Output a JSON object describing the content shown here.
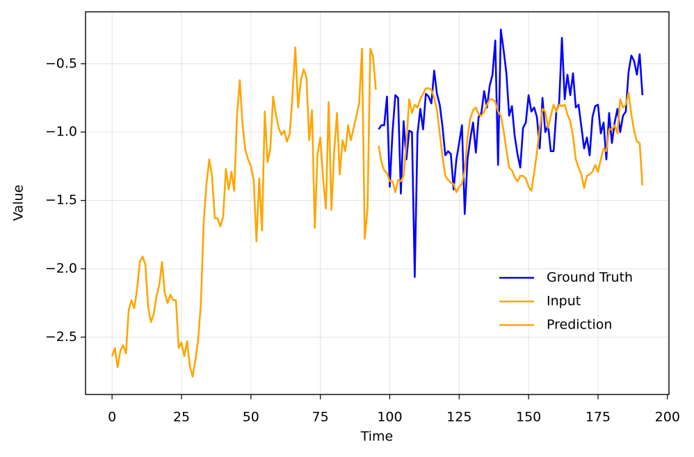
{
  "chart_data": {
    "type": "line",
    "xlabel": "Time",
    "ylabel": "Value",
    "xlim": [
      -9.55,
      200.55
    ],
    "ylim": [
      -2.92,
      -0.12
    ],
    "xticks": [
      0,
      25,
      50,
      75,
      100,
      125,
      150,
      175,
      200
    ],
    "yticks": [
      {
        "value": -2.5,
        "label": "−2.5"
      },
      {
        "value": -2.0,
        "label": "−2.0"
      },
      {
        "value": -1.5,
        "label": "−1.5"
      },
      {
        "value": -1.0,
        "label": "−1.0"
      },
      {
        "value": -0.5,
        "label": "−0.5"
      }
    ],
    "grid": true,
    "legend": "lower right",
    "series": [
      {
        "name": "Ground Truth",
        "color": "#0000ff",
        "x": [
          96,
          97,
          98,
          99,
          100,
          101,
          102,
          103,
          104,
          105,
          106,
          107,
          108,
          109,
          110,
          111,
          112,
          113,
          114,
          115,
          116,
          117,
          118,
          119,
          120,
          121,
          122,
          123,
          124,
          125,
          126,
          127,
          128,
          129,
          130,
          131,
          132,
          133,
          134,
          135,
          136,
          137,
          138,
          139,
          140,
          141,
          142,
          143,
          144,
          145,
          146,
          147,
          148,
          149,
          150,
          151,
          152,
          153,
          154,
          155,
          156,
          157,
          158,
          159,
          160,
          161,
          162,
          163,
          164,
          165,
          166,
          167,
          168,
          169,
          170,
          171,
          172,
          173,
          174,
          175,
          176,
          177,
          178,
          179,
          180,
          181,
          182,
          183,
          184,
          185,
          186,
          187,
          188,
          189,
          190,
          191
        ],
        "values": [
          -0.98,
          -0.95,
          -0.95,
          -0.74,
          -1.4,
          -1.0,
          -0.73,
          -0.75,
          -1.45,
          -0.92,
          -1.2,
          -0.99,
          -1.0,
          -2.06,
          -1.01,
          -0.83,
          -0.98,
          -0.72,
          -0.74,
          -0.79,
          -0.55,
          -0.72,
          -0.8,
          -0.96,
          -1.17,
          -1.14,
          -1.16,
          -1.42,
          -1.2,
          -1.08,
          -0.95,
          -1.6,
          -1.2,
          -1.05,
          -0.93,
          -1.15,
          -0.89,
          -0.86,
          -0.7,
          -0.82,
          -0.66,
          -0.58,
          -0.33,
          -1.24,
          -0.25,
          -0.4,
          -0.57,
          -0.88,
          -0.81,
          -1.03,
          -1.16,
          -1.26,
          -0.97,
          -0.93,
          -0.73,
          -0.85,
          -0.82,
          -0.89,
          -1.12,
          -0.75,
          -1.0,
          -0.95,
          -1.14,
          -1.14,
          -0.85,
          -0.79,
          -0.31,
          -0.76,
          -0.58,
          -0.73,
          -0.57,
          -0.82,
          -0.8,
          -0.96,
          -1.12,
          -1.04,
          -1.17,
          -0.89,
          -0.81,
          -0.8,
          -1.01,
          -0.93,
          -1.2,
          -0.86,
          -1.08,
          -0.93,
          -0.83,
          -1.0,
          -0.88,
          -0.85,
          -0.56,
          -0.44,
          -0.48,
          -0.58,
          -0.43,
          -0.73
        ]
      },
      {
        "name": "Input",
        "color": "#ffa500",
        "x": [
          0,
          1,
          2,
          3,
          4,
          5,
          6,
          7,
          8,
          9,
          10,
          11,
          12,
          13,
          14,
          15,
          16,
          17,
          18,
          19,
          20,
          21,
          22,
          23,
          24,
          25,
          26,
          27,
          28,
          29,
          30,
          31,
          32,
          33,
          34,
          35,
          36,
          37,
          38,
          39,
          40,
          41,
          42,
          43,
          44,
          45,
          46,
          47,
          48,
          49,
          50,
          51,
          52,
          53,
          54,
          55,
          56,
          57,
          58,
          59,
          60,
          61,
          62,
          63,
          64,
          65,
          66,
          67,
          68,
          69,
          70,
          71,
          72,
          73,
          74,
          75,
          76,
          77,
          78,
          79,
          80,
          81,
          82,
          83,
          84,
          85,
          86,
          87,
          88,
          89,
          90,
          91,
          92,
          93,
          94,
          95
        ],
        "values": [
          -2.64,
          -2.58,
          -2.72,
          -2.6,
          -2.56,
          -2.62,
          -2.3,
          -2.23,
          -2.29,
          -2.15,
          -1.95,
          -1.91,
          -1.97,
          -2.28,
          -2.39,
          -2.33,
          -2.2,
          -2.12,
          -1.95,
          -2.18,
          -2.25,
          -2.19,
          -2.23,
          -2.23,
          -2.58,
          -2.54,
          -2.64,
          -2.53,
          -2.71,
          -2.79,
          -2.67,
          -2.52,
          -2.25,
          -1.66,
          -1.38,
          -1.2,
          -1.32,
          -1.63,
          -1.63,
          -1.69,
          -1.62,
          -1.27,
          -1.42,
          -1.29,
          -1.43,
          -0.88,
          -0.62,
          -0.95,
          -1.13,
          -1.2,
          -1.25,
          -1.35,
          -1.8,
          -1.34,
          -1.72,
          -0.85,
          -1.22,
          -1.12,
          -0.74,
          -0.87,
          -0.97,
          -1.02,
          -0.99,
          -1.07,
          -1.01,
          -0.72,
          -0.38,
          -0.82,
          -0.62,
          -0.54,
          -0.6,
          -1.06,
          -0.84,
          -1.7,
          -1.16,
          -1.04,
          -1.34,
          -1.56,
          -0.78,
          -1.57,
          -1.14,
          -0.86,
          -1.31,
          -1.06,
          -1.14,
          -0.95,
          -1.06,
          -0.97,
          -0.88,
          -0.79,
          -0.39,
          -1.78,
          -1.56,
          -0.39,
          -0.45,
          -0.69
        ]
      },
      {
        "name": "Prediction",
        "color": "#ffa500",
        "x": [
          96,
          97,
          98,
          99,
          100,
          101,
          102,
          103,
          104,
          105,
          106,
          107,
          108,
          109,
          110,
          111,
          112,
          113,
          114,
          115,
          116,
          117,
          118,
          119,
          120,
          121,
          122,
          123,
          124,
          125,
          126,
          127,
          128,
          129,
          130,
          131,
          132,
          133,
          134,
          135,
          136,
          137,
          138,
          139,
          140,
          141,
          142,
          143,
          144,
          145,
          146,
          147,
          148,
          149,
          150,
          151,
          152,
          153,
          154,
          155,
          156,
          157,
          158,
          159,
          160,
          161,
          162,
          163,
          164,
          165,
          166,
          167,
          168,
          169,
          170,
          171,
          172,
          173,
          174,
          175,
          176,
          177,
          178,
          179,
          180,
          181,
          182,
          183,
          184,
          185,
          186,
          187,
          188,
          189,
          190,
          191
        ],
        "values": [
          -1.1,
          -1.22,
          -1.28,
          -1.3,
          -1.36,
          -1.36,
          -1.44,
          -1.35,
          -1.36,
          -1.32,
          -1.08,
          -0.76,
          -0.86,
          -0.8,
          -0.82,
          -0.76,
          -0.72,
          -0.68,
          -0.68,
          -0.69,
          -0.75,
          -0.84,
          -1.01,
          -1.18,
          -1.32,
          -1.35,
          -1.37,
          -1.38,
          -1.44,
          -1.4,
          -1.38,
          -1.28,
          -1.04,
          -0.9,
          -0.84,
          -0.82,
          -0.87,
          -0.88,
          -0.85,
          -0.8,
          -0.76,
          -0.76,
          -0.78,
          -0.85,
          -0.88,
          -0.99,
          -1.13,
          -1.26,
          -1.28,
          -1.33,
          -1.36,
          -1.32,
          -1.32,
          -1.34,
          -1.4,
          -1.43,
          -1.3,
          -1.15,
          -0.97,
          -0.83,
          -0.85,
          -0.97,
          -0.88,
          -0.8,
          -0.85,
          -0.8,
          -0.81,
          -0.8,
          -0.87,
          -0.92,
          -1.03,
          -1.2,
          -1.26,
          -1.31,
          -1.41,
          -1.32,
          -1.31,
          -1.29,
          -1.24,
          -1.29,
          -1.2,
          -1.12,
          -1.14,
          -0.98,
          -0.98,
          -0.95,
          -1.01,
          -0.76,
          -0.82,
          -0.8,
          -0.71,
          -0.87,
          -0.99,
          -1.07,
          -1.08,
          -1.39
        ]
      }
    ]
  }
}
